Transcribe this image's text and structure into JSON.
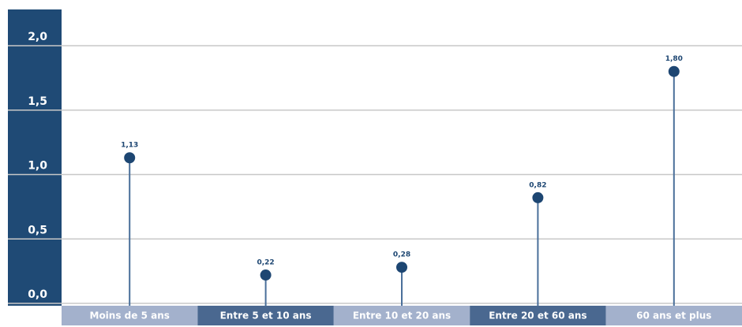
{
  "chart_data": {
    "type": "lollipop",
    "categories": [
      "Moins de 5 ans",
      "Entre 5 et 10 ans",
      "Entre 10 et 20 ans",
      "Entre 20 et 60 ans",
      "60 ans et plus"
    ],
    "values": [
      1.13,
      0.22,
      0.28,
      0.82,
      1.8
    ],
    "value_labels": [
      "1,13",
      "0,22",
      "0,28",
      "0,82",
      "1,80"
    ],
    "color": "#1d4672",
    "ylim": [
      0,
      2
    ],
    "yticks": [
      {
        "value": 0,
        "label": "0,0"
      },
      {
        "value": 0.5,
        "label": "0,5"
      },
      {
        "value": 1,
        "label": "1,0"
      },
      {
        "value": 1.5,
        "label": "1,5"
      },
      {
        "value": 2,
        "label": "2,0"
      }
    ],
    "grid": true
  }
}
